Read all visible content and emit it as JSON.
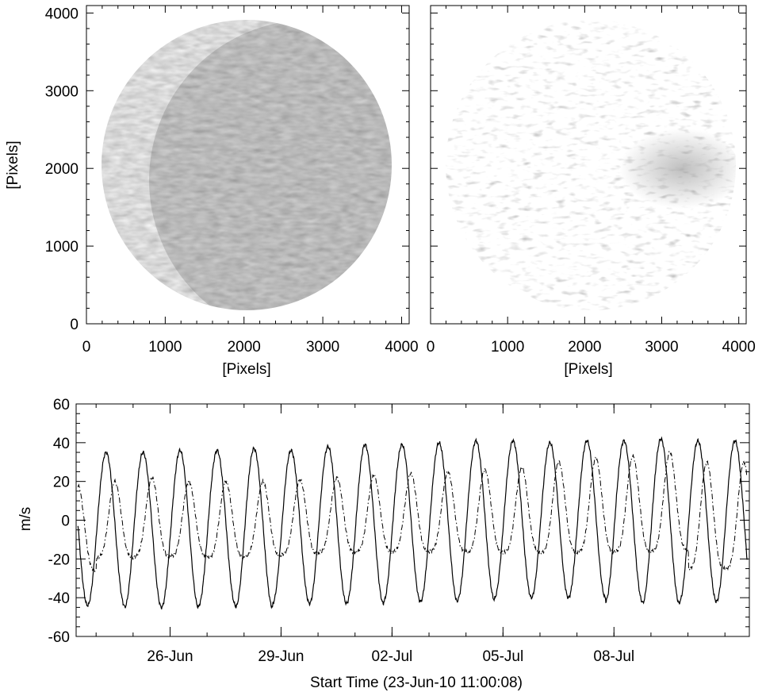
{
  "chart_data": [
    {
      "type": "heatmap",
      "panel": "image-left",
      "xlabel": "[Pixels]",
      "ylabel": "[Pixels]",
      "xlim": [
        0,
        4096
      ],
      "ylim": [
        0,
        4096
      ],
      "x_ticks": [
        0,
        1000,
        2000,
        3000,
        4000
      ],
      "y_ticks": [
        0,
        1000,
        2000,
        3000,
        4000
      ],
      "disk_center": [
        2048,
        2048
      ],
      "disk_radius": 1880,
      "colormap": "grayscale"
    },
    {
      "type": "heatmap",
      "panel": "image-right",
      "xlabel": "[Pixels]",
      "ylabel": "",
      "xlim": [
        0,
        4096
      ],
      "ylim": [
        0,
        4096
      ],
      "x_ticks": [
        0,
        1000,
        2000,
        3000,
        4000
      ],
      "y_ticks": [],
      "disk_center": [
        2048,
        2048
      ],
      "disk_radius": 1880,
      "colormap": "grayscale"
    },
    {
      "type": "line",
      "panel": "timeseries",
      "xlabel": "Start Time (23-Jun-10 11:00:08)",
      "ylabel": "m/s",
      "ylim": [
        -60,
        60
      ],
      "xlim": [
        0,
        18.2
      ],
      "x_unit": "days since start",
      "y_ticks": [
        -60,
        -40,
        -20,
        0,
        20,
        40,
        60
      ],
      "x_ticks": [
        {
          "label": "26-Jun",
          "value": 2.54
        },
        {
          "label": "29-Jun",
          "value": 5.54
        },
        {
          "label": "02-Jul",
          "value": 8.54
        },
        {
          "label": "05-Jul",
          "value": 11.54
        },
        {
          "label": "08-Jul",
          "value": 14.54
        }
      ],
      "series": [
        {
          "style": "solid",
          "phase": 0.81,
          "cycles": [
            {
              "max": 35,
              "min": -44
            },
            {
              "max": 35,
              "min": -45
            },
            {
              "max": 36,
              "min": -45
            },
            {
              "max": 36,
              "min": -44
            },
            {
              "max": 37,
              "min": -45
            },
            {
              "max": 36,
              "min": -43
            },
            {
              "max": 38,
              "min": -43
            },
            {
              "max": 39,
              "min": -43
            },
            {
              "max": 39,
              "min": -42
            },
            {
              "max": 40,
              "min": -42
            },
            {
              "max": 41,
              "min": -41
            },
            {
              "max": 41,
              "min": -40
            },
            {
              "max": 40,
              "min": -40
            },
            {
              "max": 41,
              "min": -40
            },
            {
              "max": 41,
              "min": -42
            },
            {
              "max": 42,
              "min": -43
            },
            {
              "max": 41,
              "min": -42
            },
            {
              "max": 41,
              "min": -42
            }
          ]
        },
        {
          "style": "dash-dot",
          "phase": 0.05,
          "double_peak": true,
          "cycles": [
            {
              "max": 18,
              "min": -36
            },
            {
              "max": 20,
              "min": -28
            },
            {
              "max": 22,
              "min": -28
            },
            {
              "max": 20,
              "min": -27
            },
            {
              "max": 20,
              "min": -28
            },
            {
              "max": 20,
              "min": -27
            },
            {
              "max": 21,
              "min": -26
            },
            {
              "max": 22,
              "min": -25
            },
            {
              "max": 23,
              "min": -25
            },
            {
              "max": 24,
              "min": -25
            },
            {
              "max": 25,
              "min": -25
            },
            {
              "max": 26,
              "min": -26
            },
            {
              "max": 27,
              "min": -26
            },
            {
              "max": 30,
              "min": -27
            },
            {
              "max": 32,
              "min": -27
            },
            {
              "max": 33,
              "min": -27
            },
            {
              "max": 35,
              "min": -27
            },
            {
              "max": 30,
              "min": -37
            }
          ]
        }
      ]
    }
  ]
}
